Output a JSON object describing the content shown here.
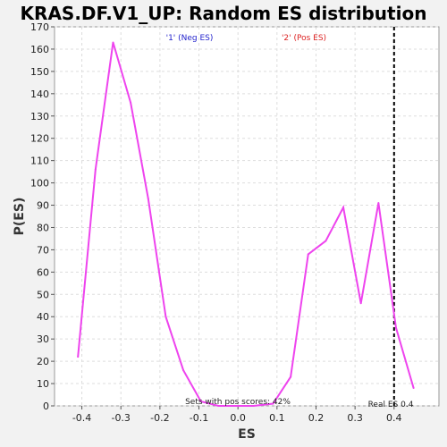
{
  "chart_data": {
    "type": "line",
    "title": "KRAS.DF.V1_UP: Random ES distribution",
    "xlabel": "ES",
    "ylabel": "P(ES)",
    "xlim": [
      -0.47,
      0.515
    ],
    "ylim": [
      0,
      170
    ],
    "x_ticks": [
      -0.4,
      -0.3,
      -0.2,
      -0.1,
      0.0,
      0.1,
      0.2,
      0.3,
      0.4
    ],
    "x_tick_labels": [
      "-0.4",
      "-0.3",
      "-0.2",
      "-0.1",
      "0.0",
      "0.1",
      "0.2",
      "0.3",
      "0.4"
    ],
    "y_ticks": [
      0,
      10,
      20,
      30,
      40,
      50,
      60,
      70,
      80,
      90,
      100,
      110,
      120,
      130,
      140,
      150,
      160,
      170
    ],
    "y_tick_labels": [
      "0",
      "10",
      "20",
      "30",
      "40",
      "50",
      "60",
      "70",
      "80",
      "90",
      "100",
      "110",
      "120",
      "130",
      "140",
      "150",
      "160",
      "170"
    ],
    "grid": true,
    "series": [
      {
        "color": "#ee44ee",
        "x": [
          -0.41,
          -0.365,
          -0.32,
          -0.275,
          -0.23,
          -0.185,
          -0.14,
          -0.095,
          -0.05,
          -0.005,
          0.04,
          0.09,
          0.135,
          0.18,
          0.225,
          0.27,
          0.315,
          0.36,
          0.405,
          0.45
        ],
        "y": [
          22,
          106,
          163,
          136,
          93,
          40,
          16,
          2,
          0,
          0,
          0,
          1,
          13,
          68,
          74,
          89,
          46,
          91,
          35,
          8
        ]
      }
    ],
    "reference_line": {
      "x": 0.4,
      "color": "#000000",
      "label": "Real ES 0.4"
    },
    "annotations": {
      "neg_label": "'1' (Neg ES)",
      "neg_color": "#2222cc",
      "pos_label": "'2' (Pos ES)",
      "pos_color": "#dd2222",
      "footer": "Sets with pos scores: 42%"
    }
  }
}
